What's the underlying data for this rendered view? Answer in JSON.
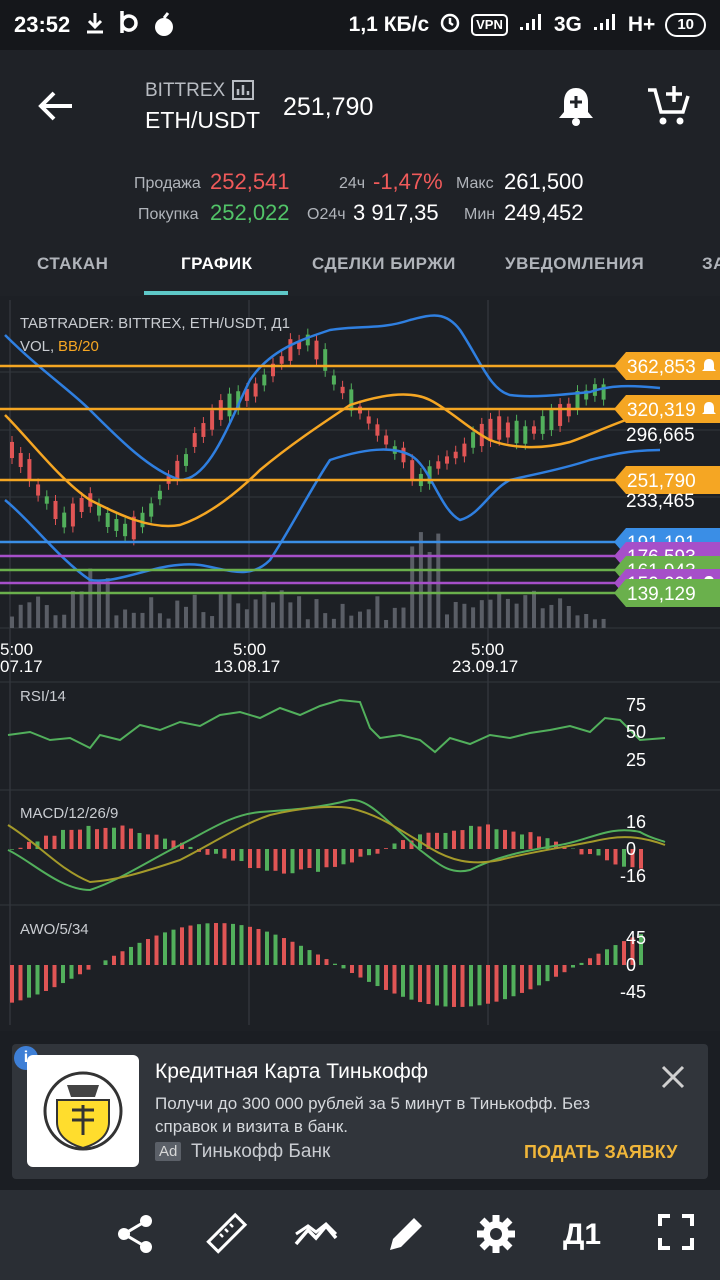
{
  "status": {
    "time": "23:52",
    "net_speed": "1,1 КБ/с",
    "vpn": "VPN",
    "network": "3G",
    "network2": "H+",
    "battery": "10"
  },
  "header": {
    "exchange": "BITTREX",
    "pair": "ETH/USDT",
    "price": "251,790",
    "sell_label": "Продажа",
    "sell_value": "252,541",
    "buy_label": "Покупка",
    "buy_value": "252,022",
    "change_label": "24ч",
    "change_value": "-1,47%",
    "volume_label": "О24ч",
    "volume_value": "3 917,35",
    "max_label": "Макс",
    "max_value": "261,500",
    "min_label": "Мин",
    "min_value": "249,452"
  },
  "tabs": [
    {
      "label": "СТАКАН",
      "active": false
    },
    {
      "label": "ГРАФИК",
      "active": true
    },
    {
      "label": "СДЕЛКИ БИРЖИ",
      "active": false
    },
    {
      "label": "УВЕДОМЛЕНИЯ",
      "active": false
    },
    {
      "label": "ЗА",
      "active": false
    }
  ],
  "chart": {
    "title": "TABTRADER: BITTREX, ETH/USDT, Д1",
    "vol_label": "VOL,",
    "bb_label": "BB/20",
    "price_axis": [
      "296,665",
      "233,465"
    ],
    "tags": [
      {
        "label": "362,853",
        "color": "#f5a623",
        "alert": true
      },
      {
        "label": "320,319",
        "color": "#f5a623",
        "alert": true
      },
      {
        "label": "251,790",
        "color": "#f5a623",
        "alert": false
      },
      {
        "label": "191,191",
        "color": "#3a8ee6",
        "alert": false
      },
      {
        "label": "176,593",
        "color": "#a64fc9",
        "alert": false
      },
      {
        "label": "161,943",
        "color": "#6ab04c",
        "alert": false
      },
      {
        "label": "150,091",
        "color": "#a64fc9",
        "alert": true
      },
      {
        "label": "139,129",
        "color": "#6ab04c",
        "alert": false
      }
    ],
    "time_labels": [
      {
        "time": "5:00",
        "date": "07.17"
      },
      {
        "time": "5:00",
        "date": "13.08.17"
      },
      {
        "time": "5:00",
        "date": "23.09.17"
      }
    ],
    "rsi": {
      "label": "RSI/14",
      "levels": [
        "75",
        "50",
        "25"
      ]
    },
    "macd": {
      "label": "MACD/12/26/9",
      "levels": [
        "16",
        "0",
        "-16"
      ]
    },
    "awo": {
      "label": "AWO/5/34",
      "levels": [
        "45",
        "0",
        "-45"
      ]
    }
  },
  "ad": {
    "info": "i",
    "title": "Кредитная Карта Тинькофф",
    "text": "Получи до 300 000 рублей за 5 минут в Тинькофф. Без справок и визита в банк.",
    "badge": "Ad",
    "advertiser": "Тинькофф Банк",
    "cta": "ПОДАТЬ ЗАЯВКУ"
  },
  "toolbar": {
    "share": "share-icon",
    "ruler": "ruler-icon",
    "indicators": "indicators-icon",
    "draw": "pencil-icon",
    "settings": "gear-icon",
    "timeframe": "Д1",
    "fullscreen": "fullscreen-icon"
  }
}
